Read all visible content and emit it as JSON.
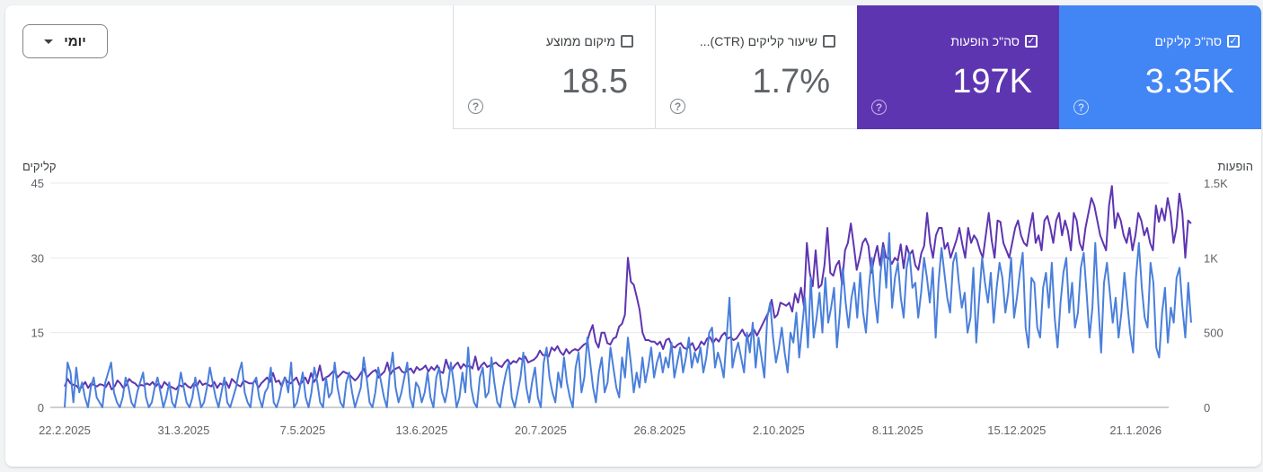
{
  "dropdown": {
    "label": "יומי"
  },
  "cards": [
    {
      "id": "position",
      "label": "מיקום ממוצע",
      "value": "18.5",
      "checked": false
    },
    {
      "id": "ctr",
      "label": "שיעור קליקים (CTR)...",
      "value": "1.7%",
      "checked": false
    },
    {
      "id": "impressions",
      "label": "סה\"כ הופעות",
      "value": "197K",
      "checked": true,
      "color": "#5e35b1"
    },
    {
      "id": "clicks",
      "label": "סה\"כ קליקים",
      "value": "3.35K",
      "checked": true,
      "color": "#4285f4"
    }
  ],
  "chart_data": {
    "type": "line",
    "left_axis": {
      "title": "קליקים",
      "ticks": [
        "0",
        "15",
        "30",
        "45"
      ],
      "range": [
        0,
        45
      ]
    },
    "right_axis": {
      "title": "הופעות",
      "ticks": [
        "0",
        "500",
        "1K",
        "1.5K"
      ],
      "range": [
        0,
        1500
      ]
    },
    "x_tick_labels": [
      "22.2.2025",
      "31.3.2025",
      "7.5.2025",
      "13.6.2025",
      "20.7.2025",
      "26.8.2025",
      "2.10.2025",
      "8.11.2025",
      "15.12.2025",
      "21.1.2026"
    ],
    "x_range": [
      "22.2.2025",
      "25.2.2026"
    ],
    "grid": true,
    "series": [
      {
        "name": "סה\"כ הופעות",
        "axis": "right",
        "color": "#5e35b1",
        "values": [
          140,
          190,
          160,
          150,
          145,
          120,
          140,
          170,
          130,
          160,
          150,
          140,
          155,
          150,
          135,
          170,
          120,
          140,
          180,
          160,
          130,
          150,
          190,
          170,
          160,
          140,
          150,
          145,
          160,
          150,
          170,
          140,
          160,
          130,
          170,
          150,
          140,
          130,
          120,
          150,
          140,
          160,
          140,
          130,
          160,
          140,
          180,
          150,
          160,
          150,
          140,
          170,
          130,
          160,
          150,
          170,
          130,
          190,
          170,
          150,
          140,
          180,
          170,
          160,
          160,
          180,
          130,
          160,
          180,
          200,
          170,
          230,
          170,
          180,
          140,
          200,
          170,
          160,
          180,
          200,
          150,
          170,
          200,
          160,
          230,
          170,
          200,
          280,
          180,
          200,
          210,
          230,
          250,
          200,
          220,
          240,
          230,
          220,
          200,
          180,
          200,
          230,
          260,
          200,
          220,
          240,
          250,
          200,
          220,
          240,
          300,
          220,
          250,
          260,
          270,
          240,
          230,
          250,
          260,
          230,
          270,
          250,
          260,
          280,
          240,
          270,
          250,
          280,
          240,
          230,
          320,
          260,
          250,
          280,
          300,
          260,
          290,
          270,
          280,
          260,
          340,
          250,
          280,
          300,
          270,
          280,
          290,
          300,
          280,
          270,
          300,
          320,
          290,
          310,
          300,
          330,
          320,
          340,
          300,
          310,
          320,
          340,
          380,
          350,
          350,
          340,
          400,
          380,
          410,
          370,
          350,
          390,
          360,
          380,
          390,
          380,
          400,
          420,
          430,
          500,
          550,
          440,
          400,
          500,
          500,
          430,
          420,
          460,
          470,
          540,
          560,
          620,
          1000,
          840,
          820,
          740,
          650,
          500,
          450,
          450,
          440,
          440,
          420,
          440,
          390,
          450,
          460,
          410,
          400,
          420,
          430,
          400,
          390,
          410,
          430,
          380,
          400,
          440,
          420,
          460,
          470,
          430,
          460,
          440,
          480,
          500,
          460,
          470,
          450,
          460,
          490,
          520,
          480,
          470,
          500,
          520,
          480,
          520,
          560,
          600,
          640,
          720,
          600,
          620,
          700,
          690,
          680,
          700,
          640,
          760,
          700,
          800,
          680,
          1100,
          900,
          810,
          1050,
          800,
          820,
          950,
          1200,
          900,
          880,
          950,
          980,
          820,
          1050,
          1100,
          1230,
          1080,
          920,
          1000,
          1100,
          1130,
          1080,
          900,
          1000,
          1080,
          950,
          1100,
          1000,
          1000,
          960,
          1000,
          980,
          1090,
          930,
          1080,
          1020,
          1050,
          950,
          920,
          1030,
          1080,
          1300,
          1100,
          1000,
          1150,
          1200,
          1200,
          1060,
          1100,
          1000,
          1060,
          1120,
          1200,
          1090,
          1000,
          1200,
          1100,
          1150,
          1120,
          1050,
          1000,
          1150,
          1300,
          1120,
          1000,
          1250,
          1240,
          1100,
          1050,
          1000,
          1100,
          1200,
          1250,
          1150,
          1100,
          1080,
          1200,
          1300,
          1100,
          1150,
          1050,
          1250,
          1280,
          1200,
          1100,
          1250,
          1300,
          1150,
          1250,
          1180,
          1050,
          1300,
          1250,
          1100,
          1050,
          1200,
          1300,
          1400,
          1350,
          1250,
          1150,
          1100,
          1050,
          1350,
          1480,
          1200,
          1300,
          1250,
          1150,
          1100,
          1200,
          1050,
          1150,
          1300,
          1250,
          1150,
          1200,
          1100,
          1050,
          1350,
          1240,
          1330,
          1250,
          1400,
          1300,
          1100,
          1200,
          1430,
          1300,
          1000,
          1250,
          1230
        ]
      },
      {
        "name": "סה\"כ קליקים",
        "axis": "left",
        "color": "#4a7fdb",
        "values": [
          0,
          9,
          7,
          1,
          8,
          3,
          5,
          2,
          0,
          4,
          6,
          2,
          1,
          0,
          5,
          7,
          9,
          3,
          1,
          0,
          2,
          6,
          4,
          1,
          0,
          3,
          5,
          7,
          2,
          0,
          1,
          4,
          6,
          3,
          0,
          2,
          5,
          1,
          0,
          3,
          7,
          4,
          1,
          0,
          2,
          6,
          3,
          0,
          1,
          4,
          8,
          5,
          2,
          0,
          3,
          6,
          1,
          0,
          2,
          4,
          7,
          9,
          3,
          1,
          0,
          5,
          6,
          2,
          0,
          3,
          4,
          8,
          1,
          0,
          2,
          5,
          6,
          3,
          9,
          0,
          1,
          4,
          7,
          2,
          0,
          3,
          8,
          5,
          1,
          0,
          6,
          2,
          3,
          9,
          4,
          1,
          0,
          5,
          7,
          3,
          0,
          2,
          4,
          10,
          6,
          1,
          0,
          3,
          8,
          5,
          2,
          0,
          7,
          11,
          4,
          1,
          3,
          6,
          9,
          2,
          0,
          5,
          4,
          1,
          3,
          7,
          2,
          0,
          6,
          8,
          3,
          1,
          4,
          9,
          5,
          0,
          2,
          7,
          3,
          12,
          4,
          1,
          0,
          6,
          8,
          2,
          3,
          10,
          5,
          1,
          0,
          4,
          7,
          9,
          2,
          0,
          3,
          6,
          11,
          4,
          1,
          5,
          8,
          2,
          0,
          9,
          12,
          6,
          3,
          1,
          7,
          4,
          10,
          5,
          2,
          0,
          8,
          11,
          3,
          6,
          14,
          9,
          4,
          1,
          7,
          10,
          3,
          5,
          12,
          8,
          4,
          2,
          10,
          6,
          14,
          9,
          3,
          7,
          4,
          10,
          5,
          8,
          12,
          6,
          9,
          11,
          7,
          10,
          8,
          13,
          6,
          9,
          12,
          7,
          10,
          14,
          8,
          11,
          9,
          12,
          7,
          10,
          15,
          16,
          8,
          11,
          9,
          6,
          14,
          22,
          8,
          11,
          13,
          10,
          7,
          15,
          11,
          17,
          8,
          14,
          10,
          6,
          18,
          21,
          14,
          9,
          12,
          16,
          11,
          7,
          15,
          13,
          19,
          10,
          16,
          22,
          12,
          26,
          14,
          18,
          23,
          15,
          26,
          17,
          20,
          24,
          12,
          19,
          28,
          21,
          16,
          22,
          25,
          18,
          27,
          19,
          15,
          24,
          30,
          22,
          17,
          27,
          32,
          24,
          35,
          20,
          26,
          29,
          22,
          18,
          28,
          31,
          24,
          25,
          18,
          23,
          30,
          26,
          21,
          28,
          14,
          25,
          32,
          27,
          22,
          19,
          29,
          31,
          25,
          20,
          23,
          15,
          18,
          28,
          13,
          22,
          30,
          25,
          21,
          27,
          17,
          24,
          29,
          26,
          19,
          23,
          30,
          18,
          22,
          27,
          31,
          16,
          12,
          26,
          25,
          16,
          14,
          24,
          27,
          20,
          29,
          18,
          12,
          21,
          27,
          30,
          19,
          25,
          16,
          19,
          28,
          31,
          23,
          14,
          20,
          33,
          21,
          11,
          25,
          29,
          23,
          17,
          22,
          14,
          19,
          27,
          21,
          15,
          11,
          26,
          33,
          24,
          18,
          16,
          29,
          25,
          12,
          10,
          19,
          24,
          13,
          20,
          17,
          26,
          28,
          20,
          14,
          25,
          17
        ]
      }
    ]
  }
}
